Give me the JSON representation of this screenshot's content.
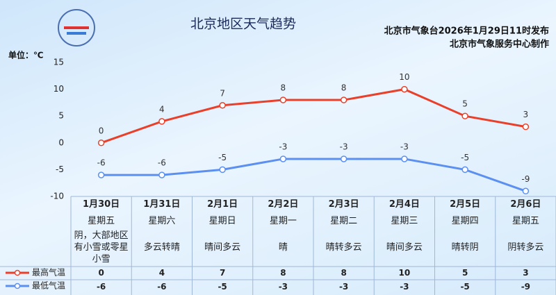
{
  "chart_data": {
    "type": "line",
    "title": "北京地区天气趋势",
    "annotations": [
      "北京市气象台2026年1月29日11时发布",
      "北京市气象服务中心制作"
    ],
    "y_label": "单位：℃",
    "categories": [
      "1月30日",
      "1月31日",
      "2月1日",
      "2月2日",
      "2月3日",
      "2月4日",
      "2月5日",
      "2月6日"
    ],
    "weekdays": [
      "星期五",
      "星期六",
      "星期日",
      "星期一",
      "星期二",
      "星期三",
      "星期四",
      "星期五"
    ],
    "weather": [
      "阴，大部地区有小雪或零星小雪",
      "多云转晴",
      "晴间多云",
      "晴",
      "晴转多云",
      "晴间多云",
      "晴转阴",
      "阴转多云"
    ],
    "series": [
      {
        "name": "最高气温",
        "color": "#e8402a",
        "values": [
          0,
          4,
          7,
          8,
          8,
          10,
          5,
          3
        ]
      },
      {
        "name": "最低气温",
        "color": "#5b8ff0",
        "values": [
          -6,
          -6,
          -5,
          -3,
          -3,
          -3,
          -5,
          -9
        ]
      }
    ],
    "ylim": [
      -10,
      15
    ],
    "yticks": [
      -10,
      -5,
      0,
      5,
      10,
      15
    ],
    "grid": false
  }
}
